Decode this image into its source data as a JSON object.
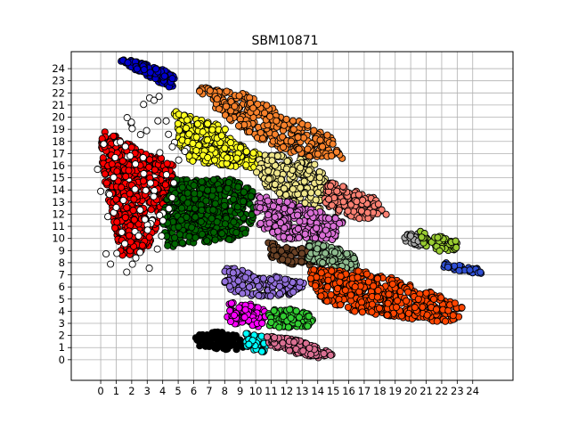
{
  "chart_data": {
    "type": "scatter",
    "title": "SBM10871",
    "xlabel": "",
    "ylabel": "",
    "xlim": [
      -1.9,
      26.6
    ],
    "ylim": [
      -1.7,
      25.4
    ],
    "grid": true,
    "x_ticks": [
      "0",
      "1",
      "2",
      "3",
      "4",
      "5",
      "6",
      "7",
      "8",
      "9",
      "10",
      "11",
      "12",
      "13",
      "14",
      "15",
      "16",
      "17",
      "18",
      "19",
      "20",
      "21",
      "22",
      "23",
      "24"
    ],
    "y_ticks": [
      "0",
      "1",
      "2",
      "3",
      "4",
      "5",
      "6",
      "7",
      "8",
      "9",
      "10",
      "11",
      "12",
      "13",
      "14",
      "15",
      "16",
      "17",
      "18",
      "19",
      "20",
      "21",
      "22",
      "23",
      "24"
    ],
    "marker_edge_color": "#000000",
    "series": [
      {
        "color": "#0000cd",
        "polygon": [
          [
            1.2,
            24.9
          ],
          [
            2.5,
            24.6
          ],
          [
            4.3,
            23.8
          ],
          [
            4.8,
            23.3
          ],
          [
            4.6,
            22.3
          ],
          [
            3.6,
            23.0
          ],
          [
            2.2,
            23.9
          ],
          [
            1.2,
            24.6
          ]
        ],
        "count": 140
      },
      {
        "color": "#f7812b",
        "polygon": [
          [
            6.3,
            22.5
          ],
          [
            8.8,
            22.2
          ],
          [
            12.2,
            20.1
          ],
          [
            14.8,
            18.5
          ],
          [
            15.6,
            16.6
          ],
          [
            13.0,
            16.7
          ],
          [
            10.7,
            17.8
          ],
          [
            8.4,
            19.6
          ],
          [
            6.4,
            21.9
          ]
        ],
        "count": 330
      },
      {
        "color": "#ffff1f",
        "polygon": [
          [
            4.7,
            20.6
          ],
          [
            6.0,
            20.0
          ],
          [
            7.8,
            19.3
          ],
          [
            9.3,
            17.6
          ],
          [
            10.7,
            16.6
          ],
          [
            10.4,
            15.8
          ],
          [
            8.4,
            15.9
          ],
          [
            5.8,
            16.4
          ],
          [
            5.0,
            17.8
          ],
          [
            4.9,
            19.4
          ]
        ],
        "count": 320
      },
      {
        "color": "#f0e68c",
        "polygon": [
          [
            10.5,
            17.0
          ],
          [
            13.5,
            16.6
          ],
          [
            14.5,
            15.2
          ],
          [
            14.3,
            12.2
          ],
          [
            12.5,
            12.8
          ],
          [
            10.4,
            14.3
          ],
          [
            9.8,
            15.8
          ]
        ],
        "count": 220
      },
      {
        "color": "#fa8072",
        "polygon": [
          [
            14.6,
            14.8
          ],
          [
            15.8,
            14.3
          ],
          [
            17.6,
            13.4
          ],
          [
            18.5,
            12.0
          ],
          [
            17.2,
            11.5
          ],
          [
            15.6,
            11.9
          ],
          [
            14.4,
            12.6
          ]
        ],
        "count": 170
      },
      {
        "color": "#ff0000",
        "polygon": [
          [
            0.1,
            18.9
          ],
          [
            1.4,
            18.2
          ],
          [
            2.5,
            17.2
          ],
          [
            4.7,
            16.3
          ],
          [
            4.6,
            13.3
          ],
          [
            3.8,
            11.2
          ],
          [
            3.2,
            9.5
          ],
          [
            2.1,
            8.5
          ],
          [
            1.2,
            8.6
          ],
          [
            1.0,
            10.4
          ],
          [
            0.4,
            13.6
          ],
          [
            0.0,
            17.0
          ]
        ],
        "count": 520
      },
      {
        "color": "#006400",
        "polygon": [
          [
            4.7,
            15.0
          ],
          [
            6.2,
            14.8
          ],
          [
            8.0,
            15.0
          ],
          [
            9.8,
            14.3
          ],
          [
            10.0,
            12.2
          ],
          [
            9.4,
            10.4
          ],
          [
            8.0,
            9.7
          ],
          [
            5.5,
            9.6
          ],
          [
            4.3,
            9.2
          ],
          [
            4.0,
            11.2
          ],
          [
            4.2,
            13.4
          ]
        ],
        "count": 520
      },
      {
        "color": "#da70d6",
        "polygon": [
          [
            10.0,
            13.6
          ],
          [
            12.4,
            13.0
          ],
          [
            14.8,
            11.9
          ],
          [
            15.9,
            11.4
          ],
          [
            15.0,
            9.8
          ],
          [
            13.2,
            10.0
          ],
          [
            11.2,
            9.9
          ],
          [
            10.1,
            11.2
          ]
        ],
        "count": 230
      },
      {
        "color": "#a9a9a9",
        "polygon": [
          [
            19.5,
            10.3
          ],
          [
            20.5,
            10.5
          ],
          [
            21.2,
            10.0
          ],
          [
            20.8,
            9.4
          ],
          [
            19.8,
            9.3
          ]
        ],
        "count": 40
      },
      {
        "color": "#9acd32",
        "polygon": [
          [
            20.6,
            10.6
          ],
          [
            22.0,
            10.3
          ],
          [
            23.1,
            9.7
          ],
          [
            22.8,
            8.8
          ],
          [
            21.7,
            9.0
          ],
          [
            20.7,
            9.5
          ]
        ],
        "count": 50
      },
      {
        "color": "#6b4226",
        "polygon": [
          [
            10.8,
            9.7
          ],
          [
            13.0,
            9.2
          ],
          [
            14.0,
            8.6
          ],
          [
            13.7,
            7.6
          ],
          [
            12.2,
            7.9
          ],
          [
            10.9,
            8.5
          ]
        ],
        "count": 90
      },
      {
        "color": "#8fbc8f",
        "polygon": [
          [
            13.4,
            9.7
          ],
          [
            14.5,
            9.4
          ],
          [
            15.8,
            9.0
          ],
          [
            16.9,
            8.0
          ],
          [
            16.0,
            7.5
          ],
          [
            14.6,
            7.6
          ],
          [
            13.3,
            8.4
          ]
        ],
        "count": 120
      },
      {
        "color": "#2f4fd4",
        "polygon": [
          [
            22.2,
            8.0
          ],
          [
            23.3,
            7.8
          ],
          [
            24.7,
            7.5
          ],
          [
            24.6,
            7.1
          ],
          [
            23.2,
            7.2
          ],
          [
            22.1,
            7.5
          ]
        ],
        "count": 40
      },
      {
        "color": "#9370db",
        "polygon": [
          [
            8.0,
            7.7
          ],
          [
            9.8,
            7.2
          ],
          [
            11.8,
            6.8
          ],
          [
            13.2,
            6.3
          ],
          [
            12.6,
            5.3
          ],
          [
            10.6,
            5.2
          ],
          [
            8.6,
            5.4
          ],
          [
            7.9,
            6.4
          ]
        ],
        "count": 140
      },
      {
        "color": "#ff4500",
        "polygon": [
          [
            13.5,
            7.5
          ],
          [
            16.3,
            7.4
          ],
          [
            18.3,
            7.0
          ],
          [
            20.2,
            6.1
          ],
          [
            22.3,
            5.1
          ],
          [
            23.4,
            4.3
          ],
          [
            22.9,
            3.0
          ],
          [
            20.6,
            3.3
          ],
          [
            18.5,
            3.6
          ],
          [
            16.3,
            4.0
          ],
          [
            14.5,
            4.8
          ],
          [
            13.4,
            6.2
          ]
        ],
        "count": 520
      },
      {
        "color": "#ff00ff",
        "polygon": [
          [
            8.1,
            4.8
          ],
          [
            9.6,
            4.6
          ],
          [
            10.5,
            4.3
          ],
          [
            10.7,
            3.4
          ],
          [
            10.2,
            2.7
          ],
          [
            8.9,
            2.8
          ],
          [
            8.1,
            3.3
          ]
        ],
        "count": 90
      },
      {
        "color": "#32cd32",
        "polygon": [
          [
            10.8,
            4.1
          ],
          [
            12.4,
            4.2
          ],
          [
            13.6,
            3.7
          ],
          [
            13.8,
            2.8
          ],
          [
            12.3,
            2.5
          ],
          [
            10.9,
            2.8
          ]
        ],
        "count": 100
      },
      {
        "color": "#000000",
        "polygon": [
          [
            6.1,
            2.2
          ],
          [
            7.8,
            2.3
          ],
          [
            8.9,
            2.0
          ],
          [
            9.2,
            1.0
          ],
          [
            8.6,
            0.8
          ],
          [
            7.4,
            0.9
          ],
          [
            6.1,
            1.2
          ]
        ],
        "count": 80
      },
      {
        "color": "#00ffff",
        "polygon": [
          [
            9.2,
            2.3
          ],
          [
            10.4,
            2.0
          ],
          [
            10.9,
            1.4
          ],
          [
            10.5,
            0.6
          ],
          [
            9.4,
            0.9
          ]
        ],
        "count": 50
      },
      {
        "color": "#db7093",
        "polygon": [
          [
            10.7,
            2.0
          ],
          [
            12.5,
            1.7
          ],
          [
            14.2,
            1.0
          ],
          [
            15.0,
            0.4
          ],
          [
            14.1,
            0.1
          ],
          [
            12.4,
            0.5
          ],
          [
            10.9,
            1.2
          ]
        ],
        "count": 140
      },
      {
        "color": "#ffffff",
        "polygon": [
          [
            0.0,
            19.5
          ],
          [
            4.5,
            22.5
          ],
          [
            6.0,
            17.5
          ],
          [
            3.5,
            7.0
          ],
          [
            0.5,
            6.5
          ],
          [
            -0.3,
            14.0
          ]
        ],
        "count": 70
      }
    ]
  }
}
